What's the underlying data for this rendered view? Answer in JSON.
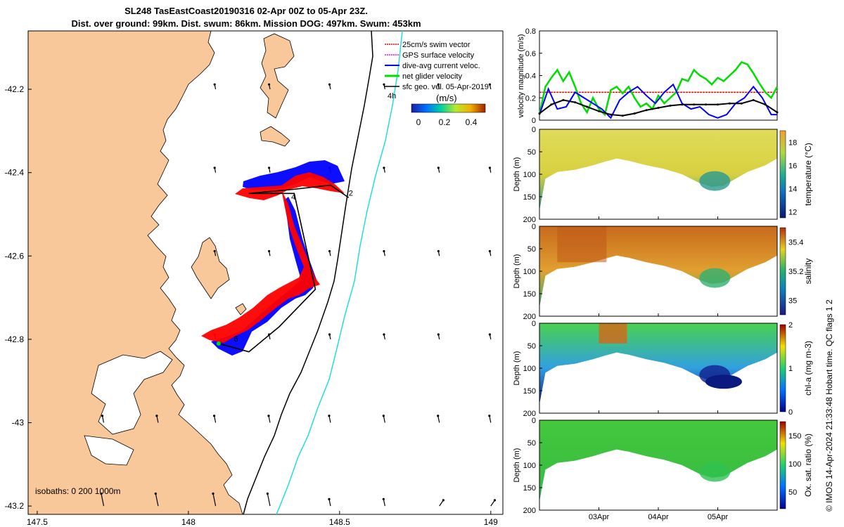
{
  "title": {
    "line1": "SL248 TasEastCoast20190316 02-Apr 00Z to 05-Apr 23Z.",
    "line2": "Dist. over ground: 99km. Dist. swum: 86km. Mission DOG: 497km. Swum: 453km"
  },
  "colors": {
    "land": "#F8C89A",
    "sea": "#FFFFFF",
    "swim_vector": "#FF0000",
    "gps_velocity": "#FF00FF",
    "dive_avg": "#0000FF",
    "net_velocity": "#00DD00",
    "sfc_geo": "#000000",
    "isobath_200": "#000000",
    "isobath_1000": "#22DDDD"
  },
  "credit": "© IMOS 14-Apr-2024 21:33:48 Hobart time. QC flags 1  2",
  "chart_data": [
    {
      "type": "scatter",
      "name": "map",
      "xlim": [
        147.47,
        149.04
      ],
      "ylim": [
        -43.22,
        -42.06
      ],
      "xticks": [
        "147.5",
        "148",
        "148.5",
        "149"
      ],
      "xtick_values": [
        147.5,
        148.0,
        148.5,
        149.0
      ],
      "yticks": [
        "-42.2",
        "-42.4",
        "-42.6",
        "-42.8",
        "-43",
        "-43.2"
      ],
      "ytick_values": [
        -42.2,
        -42.4,
        -42.6,
        -42.8,
        -43.0,
        -43.2
      ],
      "legend": [
        "25cm/s swim vector",
        "GPS surface velocity",
        "dive-avg current veloc.",
        "net glider velocity",
        "sfc geo. vel. 05-Apr-2019"
      ],
      "legend_time_label": "4h",
      "colorbar": {
        "label": "(m/s)",
        "ticks": [
          "0",
          "0.2",
          "0.4"
        ],
        "range": [
          0,
          0.5
        ]
      },
      "isobath_label": "isobaths: 0   200  1000m",
      "track": [
        [
          148.1,
          -42.81
        ],
        [
          148.2,
          -42.83
        ],
        [
          148.3,
          -42.77
        ],
        [
          148.42,
          -42.68
        ],
        [
          148.35,
          -42.45
        ],
        [
          148.27,
          -42.45
        ],
        [
          148.2,
          -42.45
        ],
        [
          148.35,
          -42.44
        ],
        [
          148.47,
          -42.43
        ],
        [
          148.53,
          -42.46
        ]
      ],
      "track_labels": [
        {
          "text": "2",
          "lon": 148.53,
          "lat": -42.455
        },
        {
          "text": "4",
          "lon": 148.34,
          "lat": -42.465
        },
        {
          "text": "6",
          "lon": 148.15,
          "lat": -42.805
        }
      ]
    },
    {
      "type": "line",
      "name": "velocity",
      "ylabel": "velocity magnitude (m/s)",
      "ylim": [
        0,
        0.8
      ],
      "yticks": [
        "0",
        "0.2",
        "0.4",
        "0.6",
        "0.8"
      ],
      "ytick_values": [
        0,
        0.2,
        0.4,
        0.6,
        0.8
      ],
      "time_range_days": [
        0,
        4
      ],
      "series": [
        {
          "name": "swim",
          "color": "#FF0000",
          "t": [
            0,
            4
          ],
          "values": [
            0.25,
            0.25
          ]
        },
        {
          "name": "net",
          "color": "#00DD00",
          "t": [
            0,
            0.1,
            0.2,
            0.3,
            0.4,
            0.5,
            0.6,
            0.7,
            0.8,
            0.9,
            1.0,
            1.1,
            1.2,
            1.3,
            1.4,
            1.5,
            1.6,
            1.7,
            1.8,
            1.9,
            2.0,
            2.1,
            2.2,
            2.3,
            2.4,
            2.5,
            2.6,
            2.7,
            2.8,
            2.9,
            3.0,
            3.1,
            3.2,
            3.3,
            3.4,
            3.5,
            3.6,
            3.7,
            3.8,
            3.9,
            4.0
          ],
          "values": [
            0.05,
            0.3,
            0.38,
            0.45,
            0.35,
            0.43,
            0.3,
            0.15,
            0.07,
            0.2,
            0.1,
            0.05,
            0.27,
            0.3,
            0.24,
            0.3,
            0.2,
            0.12,
            0.15,
            0.1,
            0.22,
            0.15,
            0.2,
            0.25,
            0.37,
            0.35,
            0.45,
            0.4,
            0.37,
            0.32,
            0.38,
            0.35,
            0.4,
            0.45,
            0.52,
            0.5,
            0.42,
            0.33,
            0.25,
            0.2,
            0.3
          ]
        },
        {
          "name": "dive-avg",
          "color": "#0000FF",
          "t": [
            0,
            0.15,
            0.3,
            0.45,
            0.6,
            0.75,
            0.9,
            1.05,
            1.2,
            1.35,
            1.5,
            1.65,
            1.8,
            1.95,
            2.1,
            2.25,
            2.4,
            2.55,
            2.7,
            2.85,
            3.0,
            3.15,
            3.3,
            3.45,
            3.6,
            3.75,
            3.9,
            4.0
          ],
          "values": [
            0.05,
            0.28,
            0.1,
            0.12,
            0.25,
            0.2,
            0.15,
            0.1,
            0.02,
            0.18,
            0.25,
            0.3,
            0.22,
            0.15,
            0.25,
            0.32,
            0.15,
            0.1,
            0.12,
            0.05,
            0.02,
            0.05,
            0.15,
            0.2,
            0.3,
            0.2,
            0.05,
            0.05
          ]
        },
        {
          "name": "sfc-geo",
          "color": "#000000",
          "t": [
            0,
            0.2,
            0.4,
            0.6,
            0.8,
            1.0,
            1.2,
            1.4,
            1.6,
            1.8,
            2.0,
            2.2,
            2.4,
            2.6,
            2.8,
            3.0,
            3.2,
            3.4,
            3.6,
            3.8,
            4.0
          ],
          "values": [
            0.06,
            0.14,
            0.18,
            0.16,
            0.12,
            0.08,
            0.05,
            0.04,
            0.06,
            0.09,
            0.11,
            0.13,
            0.14,
            0.14,
            0.14,
            0.14,
            0.15,
            0.15,
            0.18,
            0.14,
            0.07
          ]
        }
      ]
    },
    {
      "type": "heatmap",
      "name": "temperature",
      "ylabel": "Depth (m)",
      "clabel": "temperature (°C)",
      "ylim": [
        200,
        0
      ],
      "yticks": [
        "0",
        "50",
        "100",
        "150",
        "200"
      ],
      "ytick_values": [
        0,
        50,
        100,
        150,
        200
      ],
      "cticks": [
        "12",
        "14",
        "16",
        "18"
      ],
      "crange": [
        11.5,
        19
      ],
      "colormap": "thermal"
    },
    {
      "type": "heatmap",
      "name": "salinity",
      "ylabel": "Depth (m)",
      "clabel": "salinity",
      "ylim": [
        200,
        0
      ],
      "yticks": [
        "0",
        "50",
        "100",
        "150",
        "200"
      ],
      "ytick_values": [
        0,
        50,
        100,
        150,
        200
      ],
      "cticks": [
        "35",
        "35.2",
        "35.4"
      ],
      "crange": [
        34.9,
        35.5
      ],
      "colormap": "haline"
    },
    {
      "type": "heatmap",
      "name": "chla",
      "ylabel": "Depth (m)",
      "clabel": "chl-a (mg m-3)",
      "ylim": [
        200,
        0
      ],
      "yticks": [
        "0",
        "50",
        "100",
        "150",
        "200"
      ],
      "ytick_values": [
        0,
        50,
        100,
        150,
        200
      ],
      "cticks": [
        "0",
        "1",
        "2"
      ],
      "crange": [
        0,
        2
      ],
      "colormap": "jet"
    },
    {
      "type": "heatmap",
      "name": "oxygen",
      "ylabel": "Depth (m)",
      "clabel": "Ox. sat. ratio (%)",
      "ylim": [
        200,
        0
      ],
      "yticks": [
        "0",
        "50",
        "100",
        "150",
        "200"
      ],
      "ytick_values": [
        0,
        50,
        100,
        150,
        200
      ],
      "cticks": [
        "50",
        "100",
        "150"
      ],
      "crange": [
        20,
        175
      ],
      "colormap": "jet",
      "xticks": [
        "03Apr",
        "04Apr",
        "05Apr"
      ],
      "xtick_days": [
        1,
        2,
        3
      ]
    }
  ],
  "bottom_profile": {
    "t": [
      0,
      0.1,
      0.3,
      0.6,
      0.9,
      1.1,
      1.3,
      1.5,
      1.8,
      2.1,
      2.4,
      2.7,
      2.9,
      3.1,
      3.3,
      3.5,
      3.8,
      4.0
    ],
    "depth": [
      180,
      110,
      95,
      90,
      80,
      72,
      65,
      70,
      80,
      88,
      100,
      120,
      128,
      125,
      110,
      95,
      80,
      65
    ]
  }
}
